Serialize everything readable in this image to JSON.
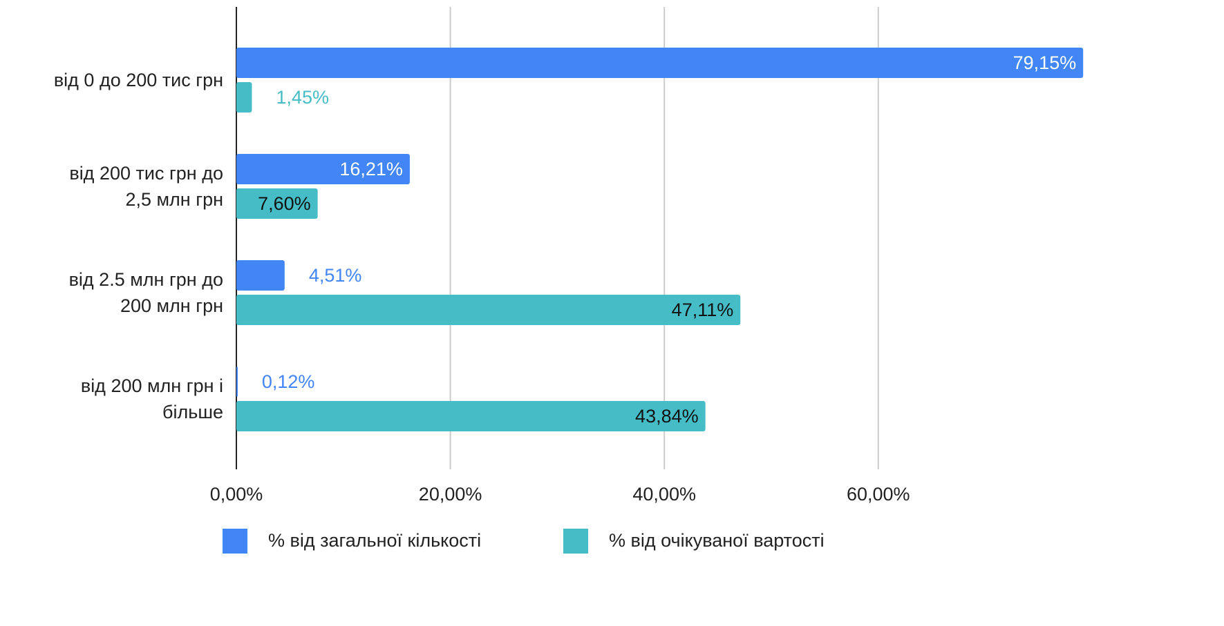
{
  "chart_data": {
    "type": "bar",
    "orientation": "horizontal",
    "categories": [
      "від 0 до 200 тис грн",
      "від 200 тис грн до\n2,5 млн грн",
      "від 2.5 млн грн до\n200 млн грн",
      "від 200 млн грн і\nбільше"
    ],
    "series": [
      {
        "name": "% від загальної кількості",
        "color": "#4285f4",
        "values": [
          79.15,
          16.21,
          4.51,
          0.12
        ],
        "value_labels": [
          "79,15%",
          "16,21%",
          "4,51%",
          "0,12%"
        ]
      },
      {
        "name": "% від очікуваної вартості",
        "color": "#46bdc6",
        "values": [
          1.45,
          7.6,
          47.11,
          43.84
        ],
        "value_labels": [
          "1,45%",
          "7,60%",
          "47,11%",
          "43,84%"
        ]
      }
    ],
    "xlim": [
      0,
      79.2
    ],
    "xticks": [
      {
        "value": 0,
        "label": "0,00%"
      },
      {
        "value": 20,
        "label": "20,00%"
      },
      {
        "value": 40,
        "label": "40,00%"
      },
      {
        "value": 60,
        "label": "60,00%"
      }
    ],
    "grid": true,
    "legend": "bottom"
  }
}
